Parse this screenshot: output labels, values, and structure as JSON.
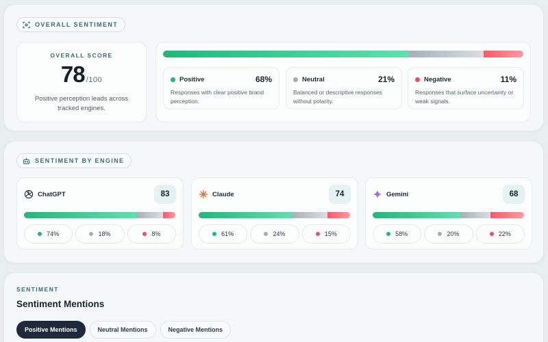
{
  "overall": {
    "chip_label": "OVERALL SENTIMENT",
    "score_label": "OVERALL SCORE",
    "score": "78",
    "score_max": "/100",
    "score_desc": "Positive perception leads across tracked engines.",
    "distribution": {
      "positive": 68,
      "neutral": 21,
      "negative": 11
    },
    "stats": [
      {
        "name": "Positive",
        "pct": "68%",
        "desc": "Responses with clear positive brand perception.",
        "color": "#1fb778"
      },
      {
        "name": "Neutral",
        "pct": "21%",
        "desc": "Balanced or descriptive responses without polarity.",
        "color": "#a3acb6"
      },
      {
        "name": "Negative",
        "pct": "11%",
        "desc": "Responses that surface uncertainty or weak signals.",
        "color": "#ef4f5c"
      }
    ]
  },
  "engines": {
    "chip_label": "SENTIMENT BY ENGINE",
    "items": [
      {
        "name": "ChatGPT",
        "icon": "chatgpt-logo-icon",
        "score": "83",
        "positive": "74%",
        "neutral": "18%",
        "negative": "8%",
        "dist": [
          74,
          18,
          8
        ]
      },
      {
        "name": "Claude",
        "icon": "claude-logo-icon",
        "score": "74",
        "positive": "61%",
        "neutral": "24%",
        "negative": "15%",
        "dist": [
          61,
          24,
          15
        ]
      },
      {
        "name": "Gemini",
        "icon": "gemini-logo-icon",
        "score": "68",
        "positive": "58%",
        "neutral": "20%",
        "negative": "22%",
        "dist": [
          58,
          20,
          22
        ]
      }
    ]
  },
  "mentions": {
    "section_label": "SENTIMENT",
    "title": "Sentiment Mentions",
    "tabs": [
      {
        "label": "Positive Mentions",
        "active": true
      },
      {
        "label": "Neutral Mentions",
        "active": false
      },
      {
        "label": "Negative Mentions",
        "active": false
      }
    ]
  },
  "colors": {
    "positive": "#1fb778",
    "neutral": "#a3acb6",
    "negative": "#ef4f5c",
    "accent": "#3d6a72",
    "dark": "#1e2a3b"
  }
}
